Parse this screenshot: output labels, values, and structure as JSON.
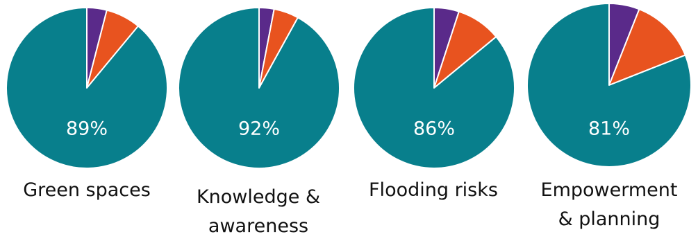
{
  "chart_data": [
    {
      "type": "pie",
      "slices": [
        {
          "value": 4,
          "color": "#5a2a8a"
        },
        {
          "value": 7,
          "color": "#e8531f"
        },
        {
          "value": 89,
          "color": "#087f8c"
        }
      ],
      "center_label": "89%",
      "category": "Green spaces"
    },
    {
      "type": "pie",
      "slices": [
        {
          "value": 3,
          "color": "#5a2a8a"
        },
        {
          "value": 5,
          "color": "#e8531f"
        },
        {
          "value": 92,
          "color": "#087f8c"
        }
      ],
      "center_label": "92%",
      "category": "Knowledge & awareness"
    },
    {
      "type": "pie",
      "slices": [
        {
          "value": 5,
          "color": "#5a2a8a"
        },
        {
          "value": 9,
          "color": "#e8531f"
        },
        {
          "value": 86,
          "color": "#087f8c"
        }
      ],
      "center_label": "86%",
      "category": "Flooding risks"
    },
    {
      "type": "pie",
      "slices": [
        {
          "value": 6,
          "color": "#5a2a8a"
        },
        {
          "value": 13,
          "color": "#e8531f"
        },
        {
          "value": 81,
          "color": "#087f8c"
        }
      ],
      "center_label": "81%",
      "category": "Empowerment & planning"
    }
  ]
}
